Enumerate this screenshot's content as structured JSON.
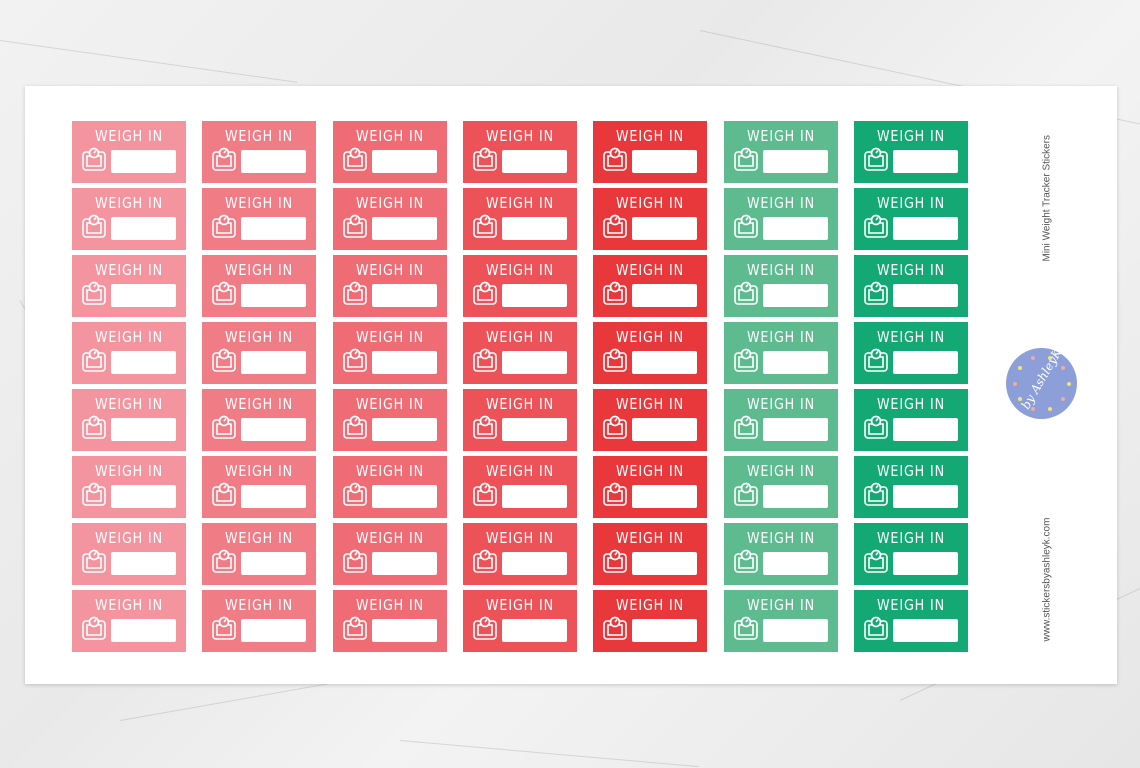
{
  "sheet": {
    "title": "Mini Weight Tracker Stickers",
    "website": "www.stickersbyashleyk.com",
    "logo_text": "by AshleyK"
  },
  "sticker": {
    "label": "WEIGH IN",
    "icon": "scale-icon"
  },
  "grid": {
    "rows": 8,
    "column_colors": [
      "#f3949e",
      "#f07c86",
      "#ef6c75",
      "#ec5257",
      "#e8383b",
      "#5dbb8f",
      "#13a874"
    ]
  },
  "colors": {
    "logo_bg": "#8c9fd8",
    "background": "#ececec"
  }
}
